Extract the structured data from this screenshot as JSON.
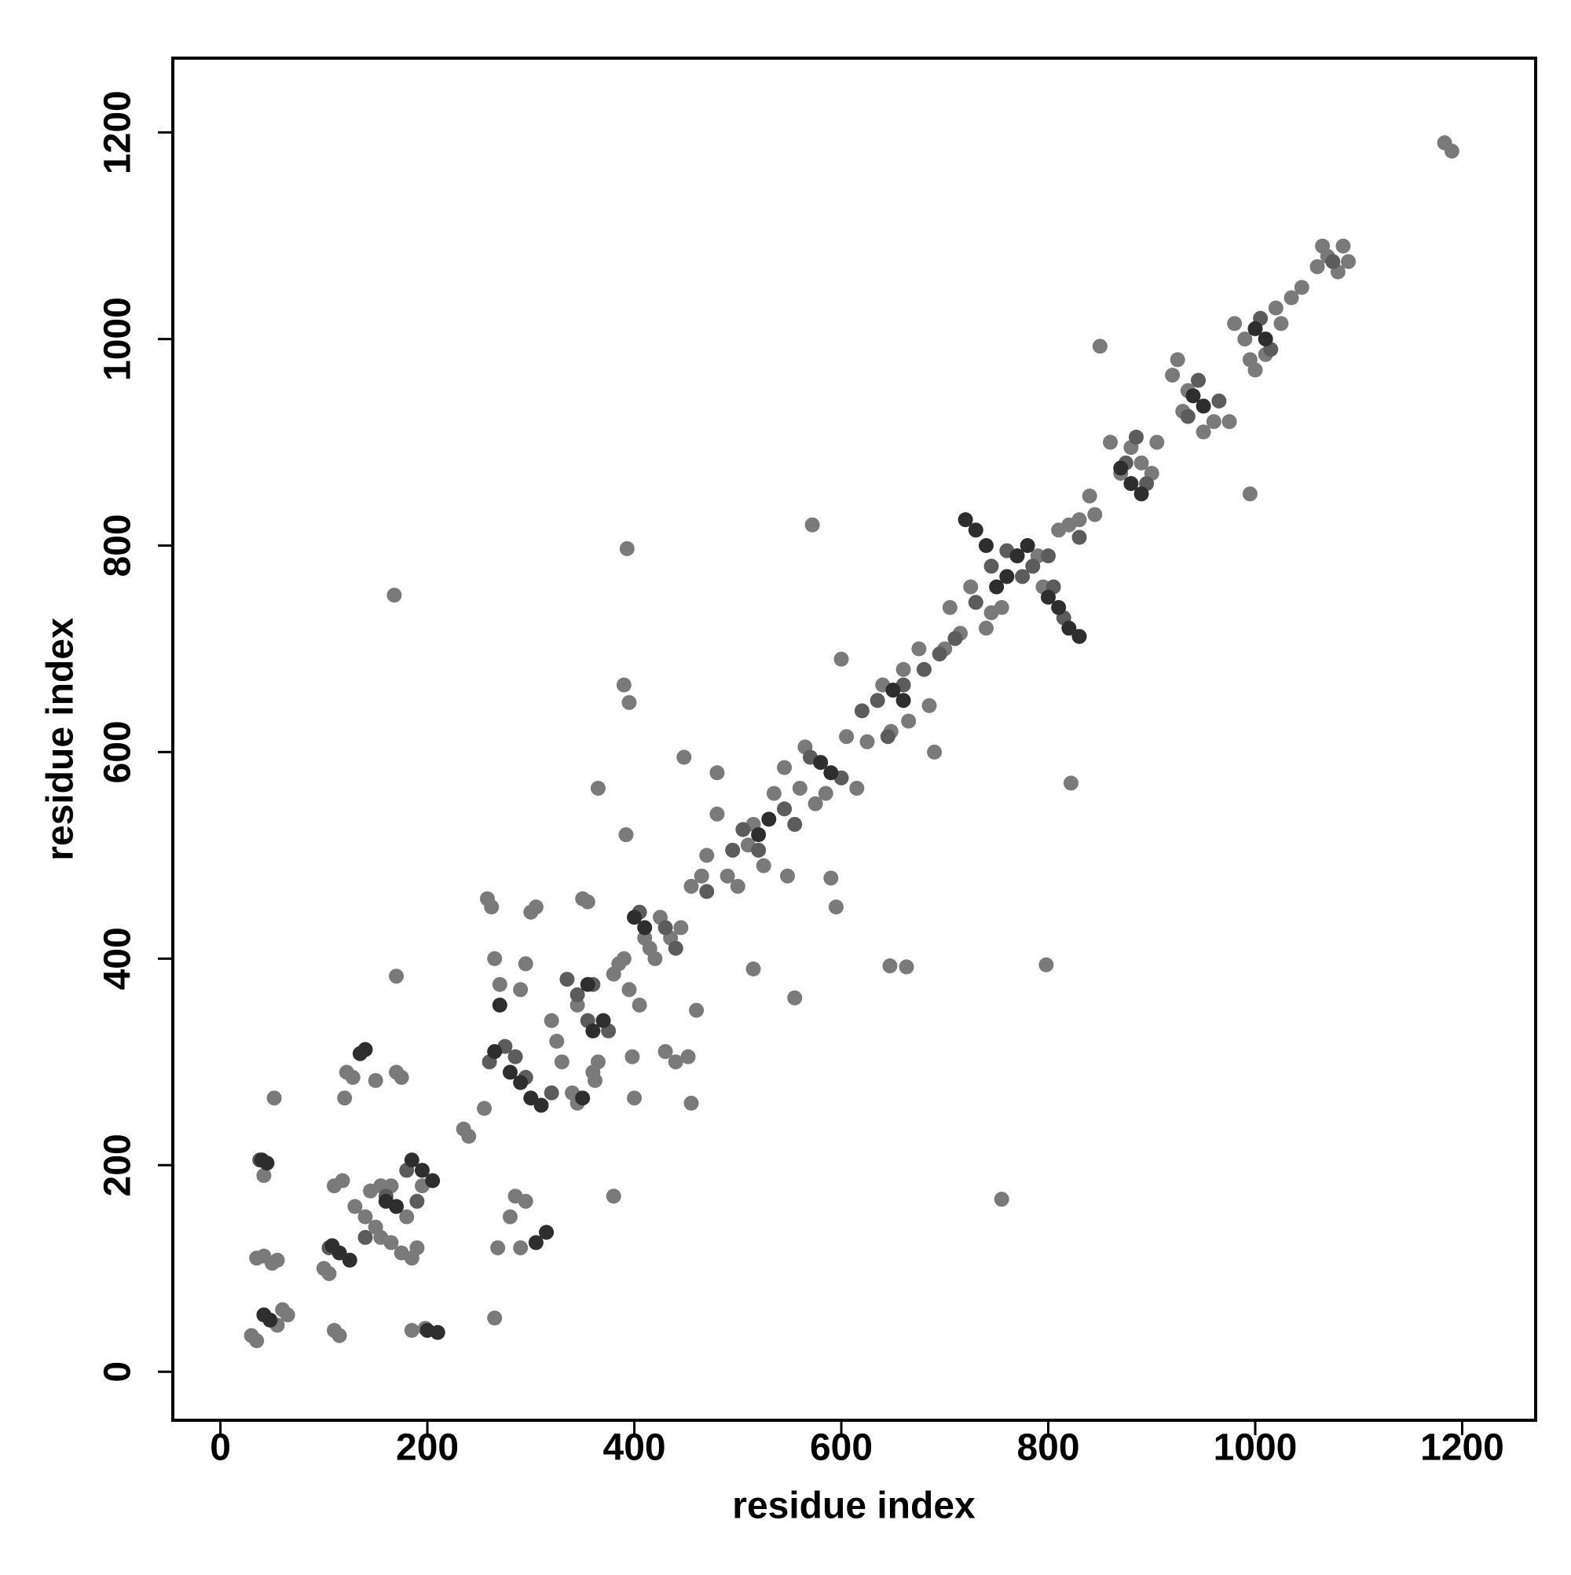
{
  "chart_data": {
    "type": "scatter",
    "xlabel": "residue index",
    "ylabel": "residue index",
    "xlim": [
      -46,
      1271
    ],
    "ylim": [
      -47,
      1272
    ],
    "xticks": [
      0,
      200,
      400,
      600,
      800,
      1000,
      1200
    ],
    "yticks": [
      0,
      200,
      400,
      600,
      800,
      1000,
      1200
    ],
    "series": [
      {
        "color": "#7a7a7a",
        "x": [
          30,
          35,
          55,
          60,
          65,
          35,
          42,
          50,
          55,
          42,
          100,
          105,
          110,
          115,
          110,
          118,
          120,
          122,
          128,
          130,
          140,
          150,
          155,
          165,
          150,
          145,
          155,
          165,
          170,
          175,
          180,
          175,
          185,
          190,
          195,
          185,
          198,
          235,
          240,
          255,
          258,
          262,
          265,
          268,
          270,
          280,
          285,
          290,
          295,
          300,
          305,
          295,
          290,
          320,
          325,
          330,
          340,
          345,
          345,
          350,
          355,
          360,
          362,
          365,
          380,
          385,
          390,
          395,
          390,
          392,
          395,
          398,
          400,
          405,
          410,
          415,
          420,
          425,
          430,
          435,
          440,
          445,
          448,
          452,
          455,
          460,
          455,
          465,
          470,
          480,
          490,
          500,
          510,
          515,
          525,
          535,
          545,
          548,
          560,
          565,
          575,
          585,
          595,
          600,
          605,
          615,
          625,
          640,
          648,
          660,
          665,
          675,
          685,
          690,
          700,
          705,
          715,
          725,
          740,
          745,
          755,
          770,
          790,
          795,
          810,
          820,
          830,
          840,
          845,
          860,
          870,
          880,
          890,
          900,
          905,
          920,
          925,
          930,
          935,
          950,
          960,
          975,
          980,
          990,
          995,
          1000,
          1010,
          1020,
          1025,
          1035,
          1045,
          1060,
          1065,
          1070,
          1080,
          1085,
          1090,
          1183,
          1190,
          850,
          995,
          572,
          393,
          168,
          822,
          755,
          380,
          170,
          798,
          647,
          663,
          365,
          480,
          555,
          590,
          515,
          52,
          265
        ],
        "values": [
          35,
          30,
          45,
          60,
          55,
          110,
          112,
          105,
          108,
          190,
          100,
          95,
          40,
          35,
          180,
          185,
          265,
          290,
          285,
          160,
          150,
          140,
          130,
          125,
          282,
          175,
          180,
          180,
          290,
          285,
          150,
          115,
          110,
          120,
          180,
          40,
          42,
          235,
          228,
          255,
          458,
          450,
          400,
          120,
          375,
          150,
          170,
          120,
          165,
          445,
          450,
          395,
          370,
          340,
          320,
          300,
          270,
          260,
          355,
          458,
          455,
          290,
          282,
          300,
          385,
          395,
          400,
          370,
          665,
          520,
          648,
          305,
          265,
          355,
          420,
          410,
          400,
          440,
          310,
          420,
          300,
          430,
          595,
          305,
          260,
          350,
          470,
          480,
          500,
          540,
          480,
          470,
          510,
          530,
          490,
          560,
          585,
          480,
          565,
          605,
          550,
          560,
          450,
          690,
          615,
          565,
          610,
          665,
          620,
          680,
          630,
          700,
          645,
          600,
          700,
          740,
          715,
          760,
          720,
          735,
          740,
          790,
          790,
          760,
          815,
          820,
          825,
          848,
          830,
          900,
          870,
          895,
          880,
          870,
          900,
          965,
          980,
          930,
          950,
          910,
          920,
          920,
          1015,
          1000,
          980,
          970,
          985,
          1030,
          1015,
          1040,
          1050,
          1070,
          1090,
          1080,
          1065,
          1090,
          1075,
          1190,
          1182,
          993,
          850,
          820,
          797,
          752,
          570,
          167,
          170,
          383,
          394,
          393,
          392,
          565,
          580,
          362,
          478,
          390,
          265,
          52
        ]
      },
      {
        "color": "#5c5c5c",
        "x": [
          38,
          105,
          140,
          160,
          180,
          190,
          260,
          275,
          285,
          295,
          320,
          335,
          345,
          355,
          375,
          360,
          405,
          430,
          440,
          470,
          495,
          505,
          520,
          545,
          555,
          570,
          600,
          620,
          635,
          645,
          660,
          680,
          695,
          710,
          730,
          745,
          760,
          775,
          785,
          800,
          805,
          815,
          830,
          875,
          885,
          895,
          935,
          945,
          965,
          1005,
          1015,
          1075
        ],
        "values": [
          205,
          120,
          130,
          170,
          195,
          165,
          300,
          315,
          305,
          285,
          270,
          380,
          365,
          340,
          330,
          375,
          445,
          430,
          410,
          465,
          505,
          525,
          505,
          545,
          530,
          595,
          575,
          640,
          650,
          615,
          665,
          680,
          695,
          710,
          745,
          780,
          795,
          770,
          780,
          790,
          760,
          730,
          808,
          880,
          905,
          860,
          925,
          960,
          940,
          1020,
          990,
          1075
        ]
      },
      {
        "color": "#2e2e2e",
        "x": [
          40,
          45,
          42,
          48,
          108,
          115,
          125,
          135,
          140,
          160,
          170,
          185,
          195,
          205,
          200,
          210,
          270,
          265,
          280,
          290,
          300,
          310,
          305,
          315,
          350,
          360,
          370,
          355,
          400,
          410,
          520,
          530,
          580,
          590,
          650,
          660,
          720,
          730,
          740,
          750,
          760,
          800,
          810,
          820,
          830,
          870,
          880,
          890,
          940,
          950,
          1000,
          1010,
          770,
          780
        ],
        "values": [
          205,
          202,
          55,
          50,
          122,
          115,
          108,
          308,
          312,
          165,
          160,
          205,
          195,
          185,
          40,
          38,
          355,
          310,
          290,
          280,
          265,
          258,
          125,
          135,
          265,
          330,
          340,
          375,
          440,
          430,
          520,
          535,
          590,
          580,
          660,
          650,
          825,
          815,
          800,
          760,
          770,
          750,
          740,
          720,
          712,
          875,
          860,
          850,
          945,
          935,
          1010,
          1000,
          790,
          800
        ]
      }
    ]
  }
}
